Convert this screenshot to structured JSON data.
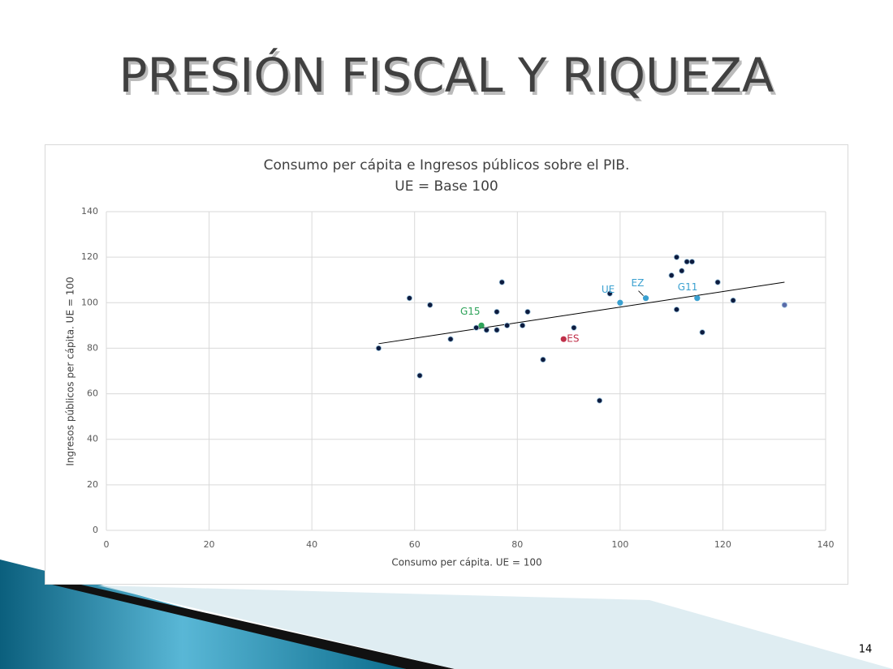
{
  "slide": {
    "title": "PRESIÓN FISCAL Y RIQUEZA",
    "page_number": "14"
  },
  "chart_data": {
    "type": "scatter",
    "title": "Consumo per cápita e Ingresos públicos sobre el PIB.",
    "subtitle": "UE = Base 100",
    "x_label": "Consumo per cápita. UE = 100",
    "y_label": "Ingresos públicos per cápita. UE = 100",
    "xlim": [
      0,
      140
    ],
    "ylim": [
      0,
      140
    ],
    "xticks": [
      0,
      20,
      40,
      60,
      80,
      100,
      120,
      140
    ],
    "yticks": [
      0,
      20,
      40,
      60,
      80,
      100,
      120,
      140
    ],
    "grid": true,
    "color": "#0d1b3e",
    "x": [
      53,
      59,
      61,
      63,
      67,
      72,
      74,
      76,
      76,
      77,
      78,
      81,
      82,
      85,
      91,
      96,
      98,
      110,
      111,
      111,
      112,
      113,
      114,
      116,
      119,
      122,
      132
    ],
    "y": [
      80,
      102,
      68,
      99,
      84,
      89,
      88,
      96,
      88,
      109,
      90,
      90,
      96,
      75,
      89,
      57,
      104,
      112,
      120,
      97,
      114,
      118,
      118,
      87,
      109,
      101,
      99
    ],
    "highlights": [
      {
        "label": "G15",
        "x": 73,
        "y": 90,
        "color": "#2ea35a"
      },
      {
        "label": "ES",
        "x": 89,
        "y": 84,
        "color": "#c0304a"
      },
      {
        "label": "UE",
        "x": 100,
        "y": 100,
        "color": "#3aa0d0"
      },
      {
        "label": "EZ",
        "x": 105,
        "y": 102,
        "color": "#3aa0d0"
      },
      {
        "label": "G11",
        "x": 115,
        "y": 102,
        "color": "#3aa0d0"
      }
    ],
    "trendline": {
      "x": [
        53,
        132
      ],
      "y": [
        82,
        109
      ],
      "color": "#000000"
    }
  }
}
